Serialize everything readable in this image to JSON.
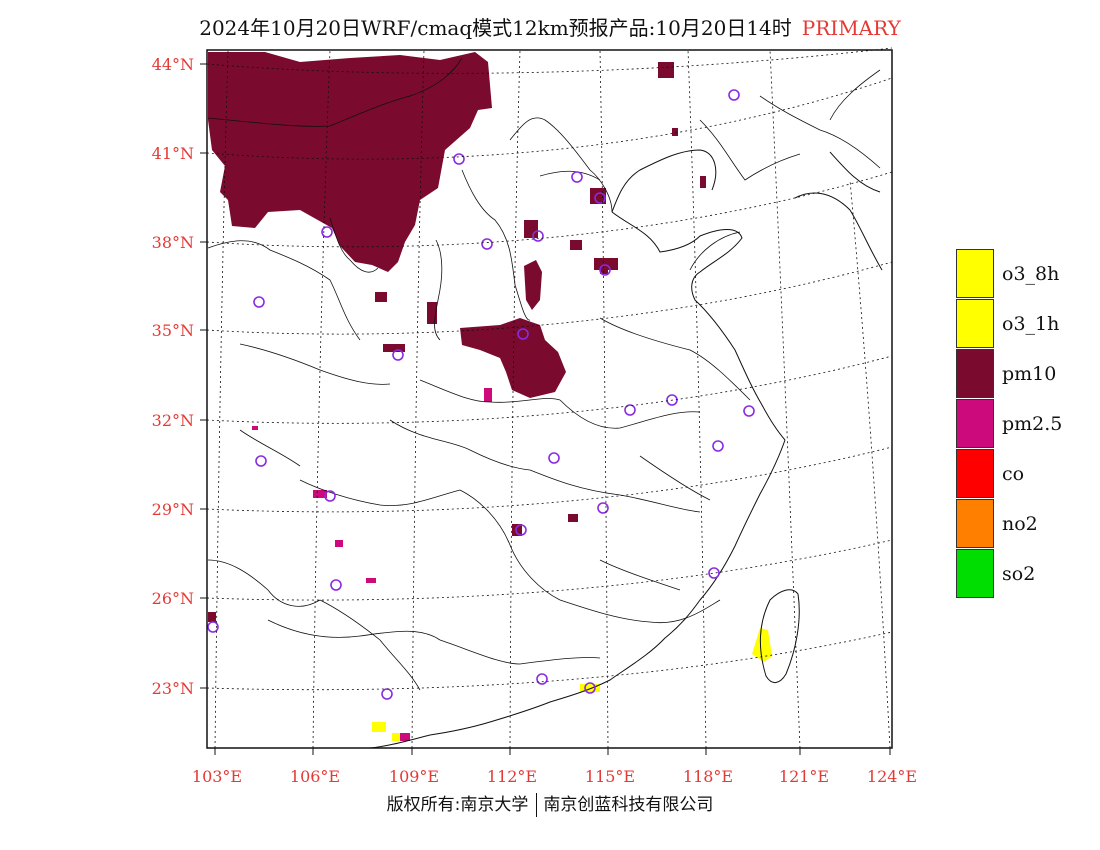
{
  "title": {
    "main": "2024年10月20日WRF/cmaq模式12km预报产品:10月20日14时",
    "tag": "PRIMARY"
  },
  "footer": {
    "left": "版权所有:南京大学",
    "right": "南京创蓝科技有限公司"
  },
  "lat_labels": [
    "44°N",
    "41°N",
    "38°N",
    "35°N",
    "32°N",
    "29°N",
    "26°N",
    "23°N"
  ],
  "lon_labels": [
    "103°E",
    "106°E",
    "109°E",
    "112°E",
    "115°E",
    "118°E",
    "121°E",
    "124°E"
  ],
  "legend": [
    {
      "label": "o3_8h",
      "color": "#ffff00"
    },
    {
      "label": "o3_1h",
      "color": "#ffff00"
    },
    {
      "label": "pm10",
      "color": "#7a0a2e"
    },
    {
      "label": "pm2.5",
      "color": "#cc0a7c"
    },
    {
      "label": "co",
      "color": "#ff0000"
    },
    {
      "label": "no2",
      "color": "#ff8000"
    },
    {
      "label": "so2",
      "color": "#00dd00"
    }
  ],
  "colors": {
    "label_red": "#e53935",
    "station_marker": "#8a2be2"
  }
}
